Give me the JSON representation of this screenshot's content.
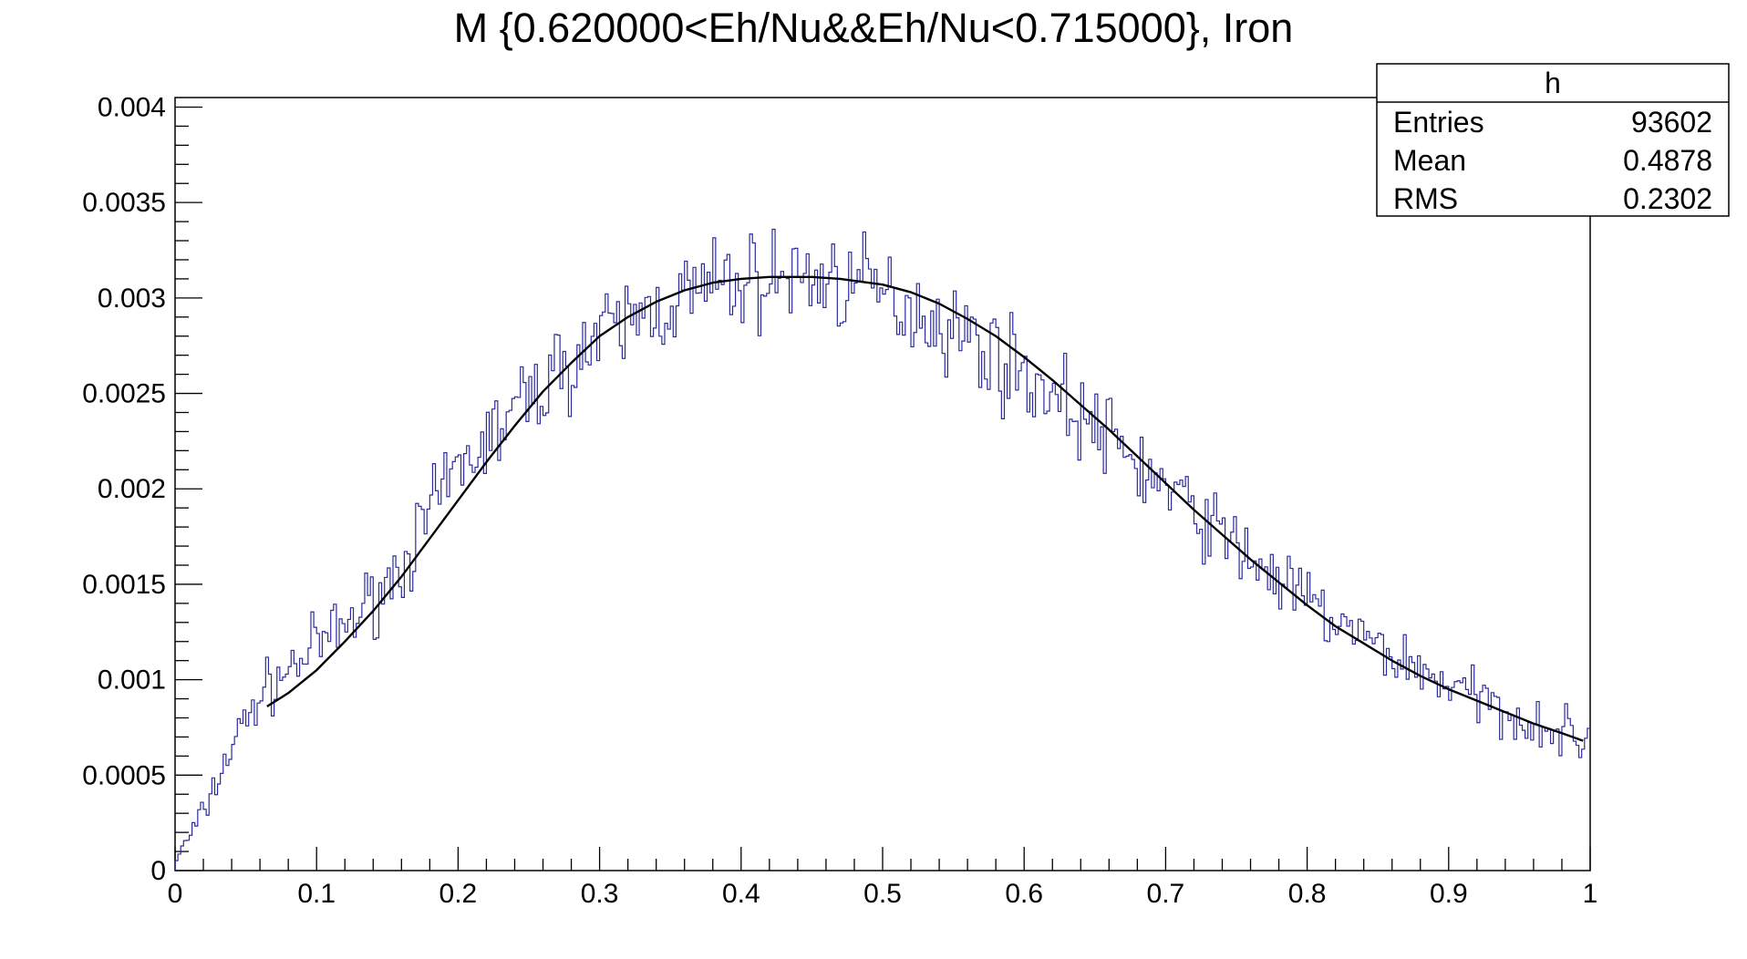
{
  "chart_data": {
    "type": "histogram",
    "title": "M {0.620000<Eh/Nu&&Eh/Nu<0.715000}, Iron",
    "xlabel": "",
    "ylabel": "",
    "xlim": [
      0,
      1
    ],
    "ylim": [
      0,
      0.00405
    ],
    "grid": false,
    "x_ticks": [
      "0",
      "0.1",
      "0.2",
      "0.3",
      "0.4",
      "0.5",
      "0.6",
      "0.7",
      "0.8",
      "0.9",
      "1"
    ],
    "y_ticks": [
      "0",
      "0.0005",
      "0.001",
      "0.0015",
      "0.002",
      "0.0025",
      "0.003",
      "0.0035",
      "0.004"
    ],
    "stats_box": {
      "name": "h",
      "rows": [
        {
          "label": "Entries",
          "value": "93602"
        },
        {
          "label": "Mean",
          "value": "0.4878"
        },
        {
          "label": "RMS",
          "value": "0.2302"
        }
      ]
    },
    "histogram": {
      "bins": 500,
      "x_range": [
        0,
        1
      ],
      "line_color": "#2b2b9e",
      "profile": {
        "x": [
          0,
          0.02,
          0.04,
          0.06,
          0.08,
          0.1,
          0.12,
          0.14,
          0.16,
          0.18,
          0.2,
          0.22,
          0.24,
          0.26,
          0.28,
          0.3,
          0.32,
          0.34,
          0.36,
          0.38,
          0.4,
          0.42,
          0.44,
          0.46,
          0.48,
          0.5,
          0.52,
          0.54,
          0.56,
          0.58,
          0.6,
          0.62,
          0.64,
          0.66,
          0.68,
          0.7,
          0.72,
          0.74,
          0.76,
          0.78,
          0.8,
          0.82,
          0.84,
          0.86,
          0.88,
          0.9,
          0.92,
          0.94,
          0.96,
          0.98,
          1.0
        ],
        "y": [
          5e-05,
          0.0003,
          0.00065,
          0.00092,
          0.00105,
          0.00118,
          0.00128,
          0.00142,
          0.0016,
          0.00185,
          0.0021,
          0.00225,
          0.0024,
          0.00255,
          0.00268,
          0.00278,
          0.00287,
          0.00295,
          0.003,
          0.00305,
          0.00308,
          0.0031,
          0.00311,
          0.0031,
          0.00307,
          0.00302,
          0.00296,
          0.00288,
          0.0028,
          0.0027,
          0.0026,
          0.0025,
          0.00238,
          0.00226,
          0.00214,
          0.002,
          0.00188,
          0.00176,
          0.00164,
          0.00152,
          0.00141,
          0.0013,
          0.00121,
          0.00113,
          0.00105,
          0.00098,
          0.0009,
          0.00084,
          0.00078,
          0.00072,
          0.00068
        ]
      },
      "noise_amplitude": 0.00022
    },
    "fit": {
      "color": "#000000",
      "x": [
        0.065,
        0.08,
        0.1,
        0.12,
        0.14,
        0.16,
        0.18,
        0.2,
        0.22,
        0.24,
        0.26,
        0.28,
        0.3,
        0.32,
        0.34,
        0.36,
        0.38,
        0.4,
        0.42,
        0.435,
        0.45,
        0.47,
        0.5,
        0.52,
        0.54,
        0.56,
        0.58,
        0.6,
        0.62,
        0.64,
        0.66,
        0.68,
        0.7,
        0.72,
        0.74,
        0.76,
        0.78,
        0.8,
        0.82,
        0.84,
        0.86,
        0.88,
        0.9,
        0.92,
        0.94,
        0.96,
        0.98,
        0.995
      ],
      "y": [
        0.00086,
        0.00093,
        0.00105,
        0.0012,
        0.00136,
        0.00154,
        0.00174,
        0.00194,
        0.00214,
        0.00233,
        0.00251,
        0.00266,
        0.0028,
        0.0029,
        0.00298,
        0.00304,
        0.00308,
        0.0031,
        0.00311,
        0.00311,
        0.00311,
        0.0031,
        0.00307,
        0.00303,
        0.00297,
        0.00289,
        0.0028,
        0.00269,
        0.00257,
        0.00244,
        0.00231,
        0.00217,
        0.00203,
        0.00189,
        0.00176,
        0.00163,
        0.00151,
        0.00139,
        0.00128,
        0.00119,
        0.0011,
        0.00102,
        0.00095,
        0.00089,
        0.00083,
        0.00077,
        0.00072,
        0.00068
      ]
    }
  }
}
